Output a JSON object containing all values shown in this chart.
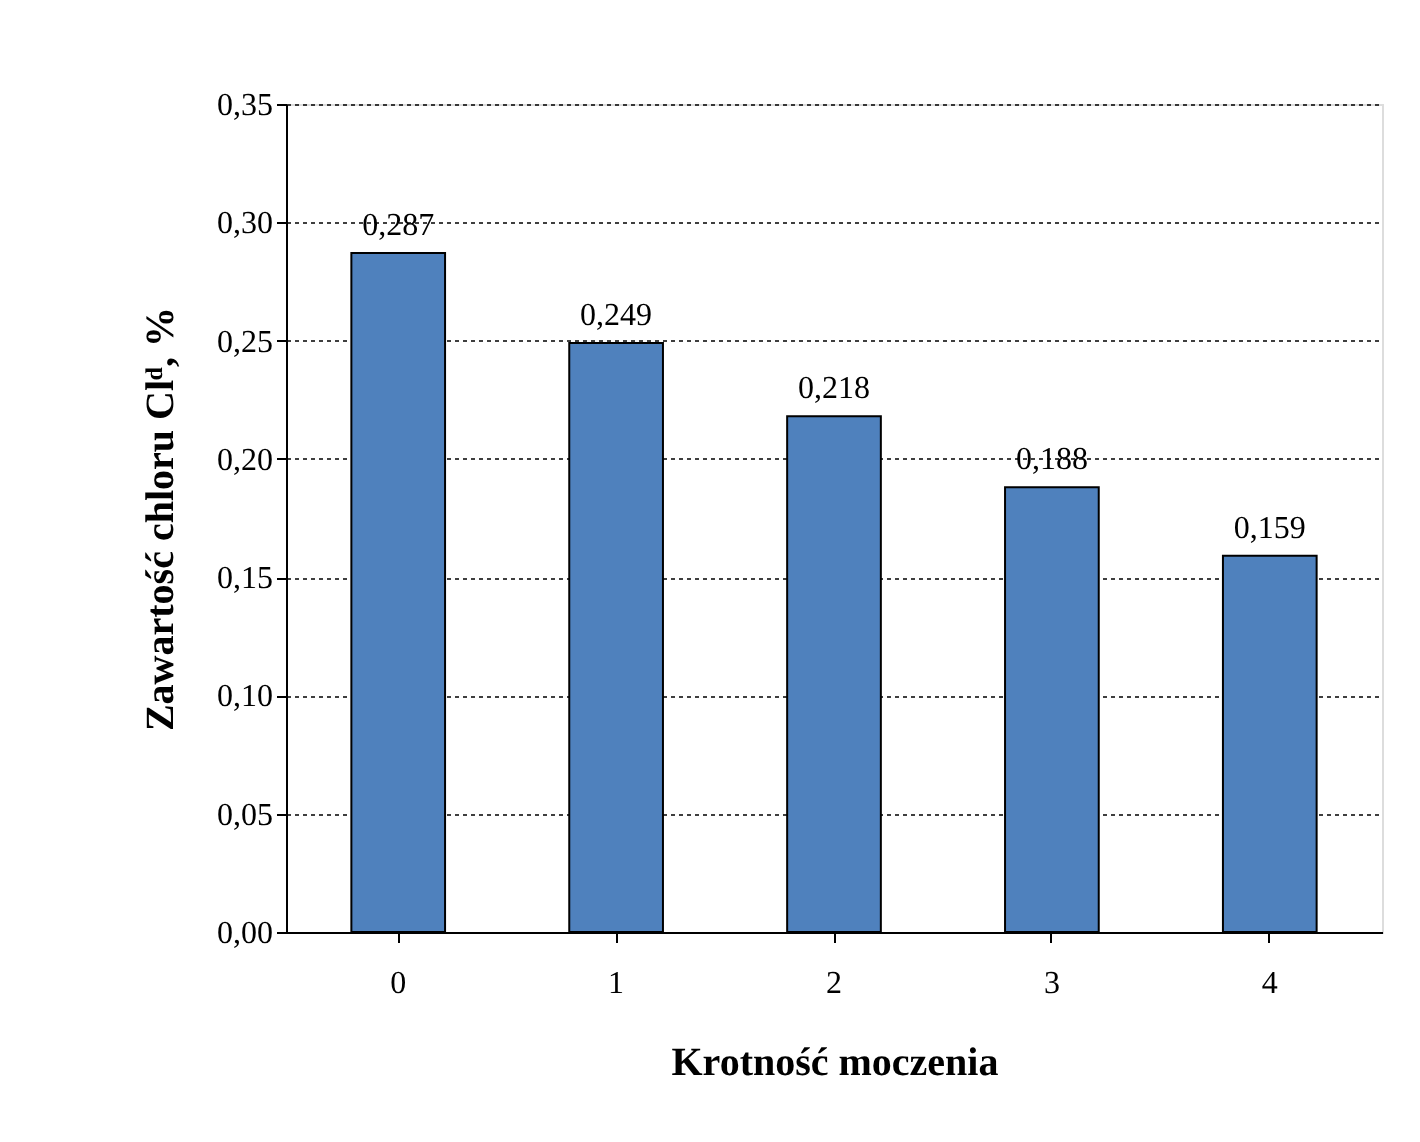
{
  "chart_data": {
    "type": "bar",
    "xlabel": "Krotność moczenia",
    "ylabel": "Zawartość chloru Clᵈ, %",
    "categories": [
      "0",
      "1",
      "2",
      "3",
      "4"
    ],
    "values": [
      0.287,
      0.249,
      0.218,
      0.188,
      0.159
    ],
    "value_labels": [
      "0,287",
      "0,249",
      "0,218",
      "0,188",
      "0,159"
    ],
    "color": "#4f81bd",
    "ylim": [
      0,
      0.35
    ],
    "yticks": [
      {
        "value": 0,
        "label": "0,00"
      },
      {
        "value": 0.05,
        "label": "0,05"
      },
      {
        "value": 0.1,
        "label": "0,10"
      },
      {
        "value": 0.15,
        "label": "0,15"
      },
      {
        "value": 0.2,
        "label": "0,20"
      },
      {
        "value": 0.25,
        "label": "0,25"
      },
      {
        "value": 0.3,
        "label": "0,30"
      },
      {
        "value": 0.35,
        "label": "0,35"
      }
    ],
    "grid": "y"
  }
}
